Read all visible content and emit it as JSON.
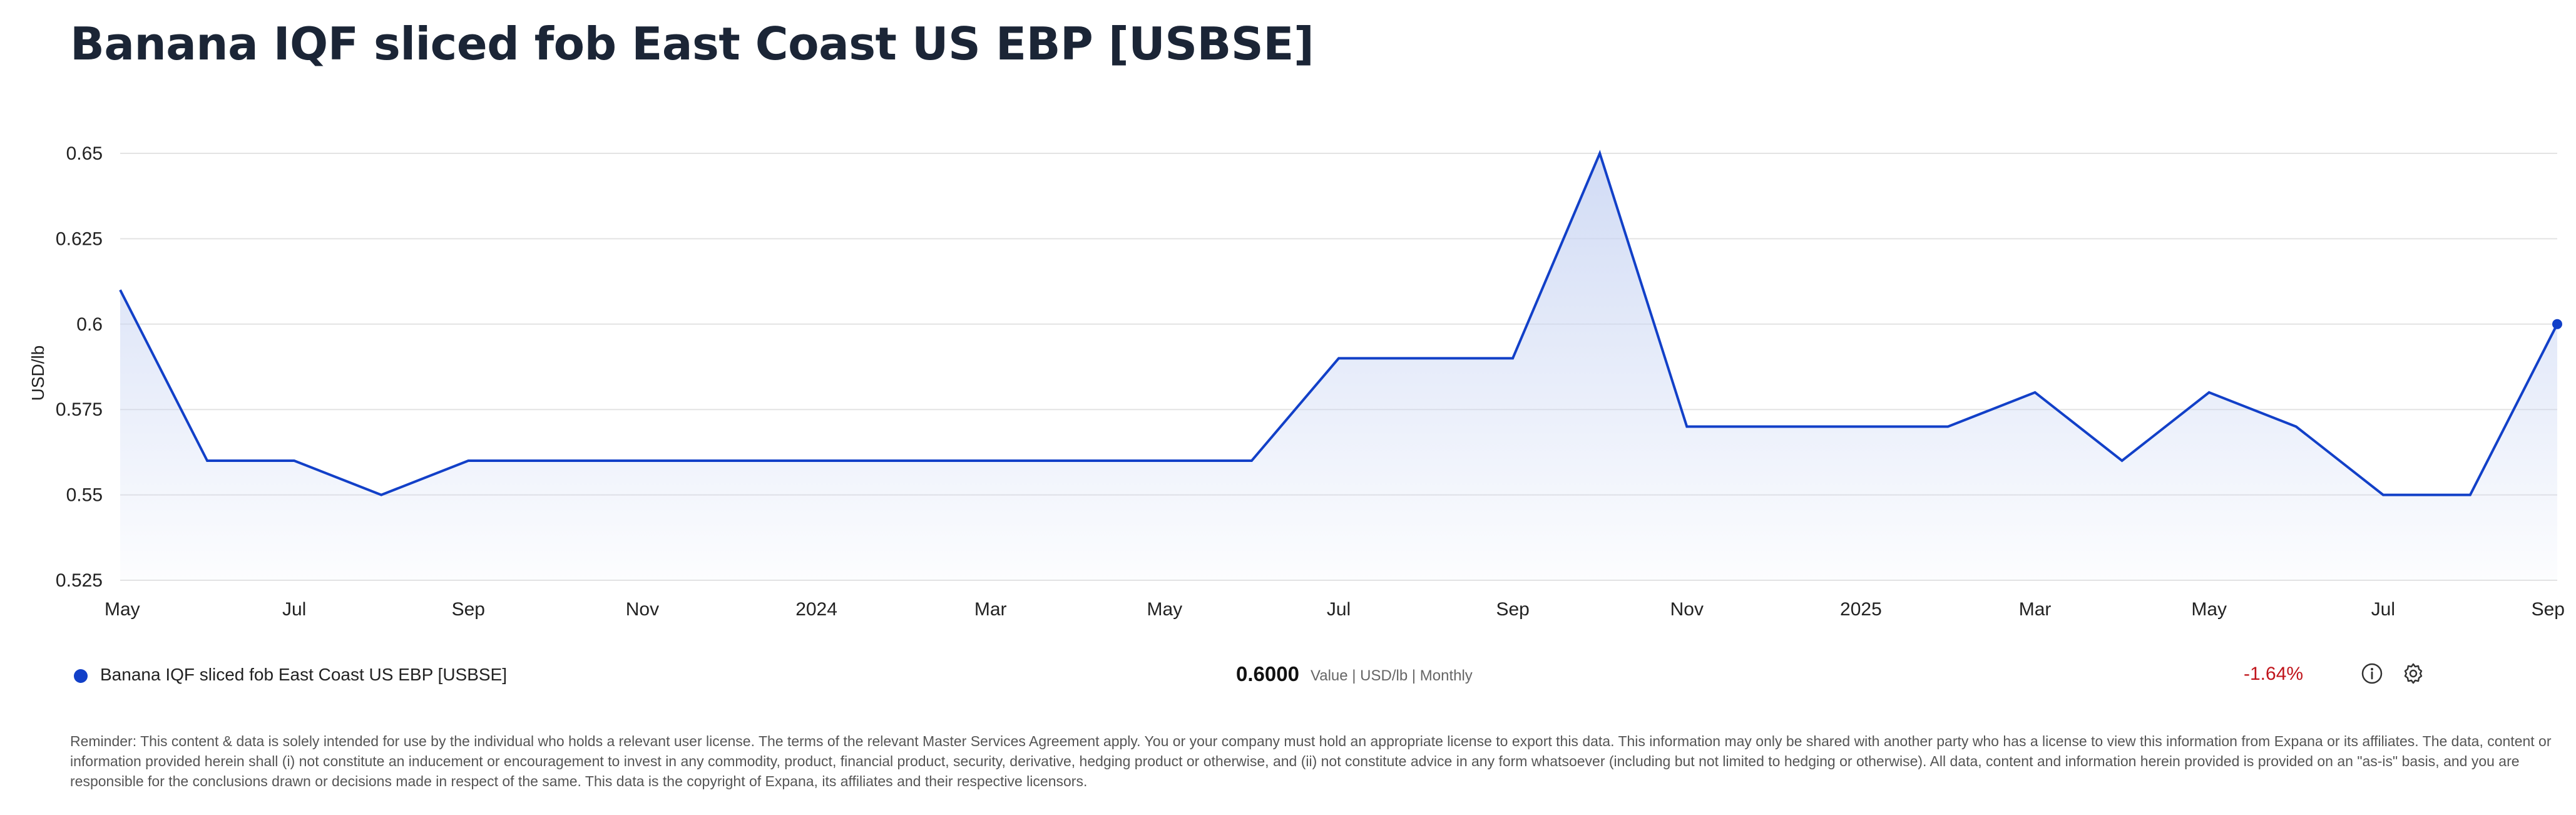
{
  "page": {
    "title": "Banana IQF sliced fob East Coast US EBP [USBSE]"
  },
  "legend": {
    "series_name": "Banana IQF sliced fob East Coast US EBP [USBSE]",
    "latest_value": "0.6000",
    "value_meta": "Value | USD/lb | Monthly",
    "change": "-1.64%",
    "change_color": "#c0141b",
    "info_icon": "info-icon",
    "settings_icon": "gear-icon"
  },
  "disclaimer": "Reminder: This content & data is solely intended for use by the individual who holds a relevant user license. The terms of the relevant Master Services Agreement apply. You or your company must hold an appropriate license to export this data. This information may only be shared with another party who has a license to view this information from Expana or its affiliates. The data, content or information provided herein shall (i) not constitute an inducement or encouragement to invest in any commodity, product, financial product, security, derivative, hedging product or otherwise, and (ii) not constitute advice in any form whatsoever (including but not limited to hedging or otherwise). All data, content and information herein provided is provided on an \"as-is\" basis, and you are responsible for the conclusions drawn or decisions made in respect of the same. This data is the copyright of Expana, its affiliates and their respective licensors.",
  "chart_data": {
    "type": "area",
    "title": "Banana IQF sliced fob East Coast US EBP [USBSE]",
    "ylabel": "USD/lb",
    "xlabel": "",
    "ylim": [
      0.525,
      0.65
    ],
    "yticks": [
      0.525,
      0.55,
      0.575,
      0.6,
      0.625,
      0.65
    ],
    "ytick_labels": [
      "0.525",
      "0.55",
      "0.575",
      "0.6",
      "0.625",
      "0.65"
    ],
    "xlim": [
      "2023-05",
      "2025-09"
    ],
    "xticks": [
      "2023-05",
      "2023-07",
      "2023-09",
      "2023-11",
      "2024-01",
      "2024-03",
      "2024-05",
      "2024-07",
      "2024-09",
      "2024-11",
      "2025-01",
      "2025-03",
      "2025-05",
      "2025-07",
      "2025-09"
    ],
    "xtick_labels": [
      "May",
      "Jul",
      "Sep",
      "Nov",
      "2024",
      "Mar",
      "May",
      "Jul",
      "Sep",
      "Nov",
      "2025",
      "Mar",
      "May",
      "Jul",
      "Sep"
    ],
    "grid": true,
    "line_color": "#1240c8",
    "fill_color": "#c9d5f3",
    "series": [
      {
        "name": "Banana IQF sliced fob East Coast US EBP [USBSE]",
        "x": [
          "2023-05",
          "2023-06",
          "2023-07",
          "2023-08",
          "2023-09",
          "2023-10",
          "2023-11",
          "2023-12",
          "2024-01",
          "2024-02",
          "2024-03",
          "2024-04",
          "2024-05",
          "2024-06",
          "2024-07",
          "2024-08",
          "2024-09",
          "2024-10",
          "2024-11",
          "2024-12",
          "2025-01",
          "2025-02",
          "2025-03",
          "2025-04",
          "2025-05",
          "2025-06",
          "2025-07",
          "2025-08",
          "2025-09"
        ],
        "values": [
          0.61,
          0.56,
          0.56,
          0.55,
          0.56,
          0.56,
          0.56,
          0.56,
          0.56,
          0.56,
          0.56,
          0.56,
          0.56,
          0.56,
          0.59,
          0.59,
          0.59,
          0.65,
          0.57,
          0.57,
          0.57,
          0.57,
          0.58,
          0.56,
          0.58,
          0.57,
          0.55,
          0.55,
          0.6
        ]
      }
    ]
  }
}
